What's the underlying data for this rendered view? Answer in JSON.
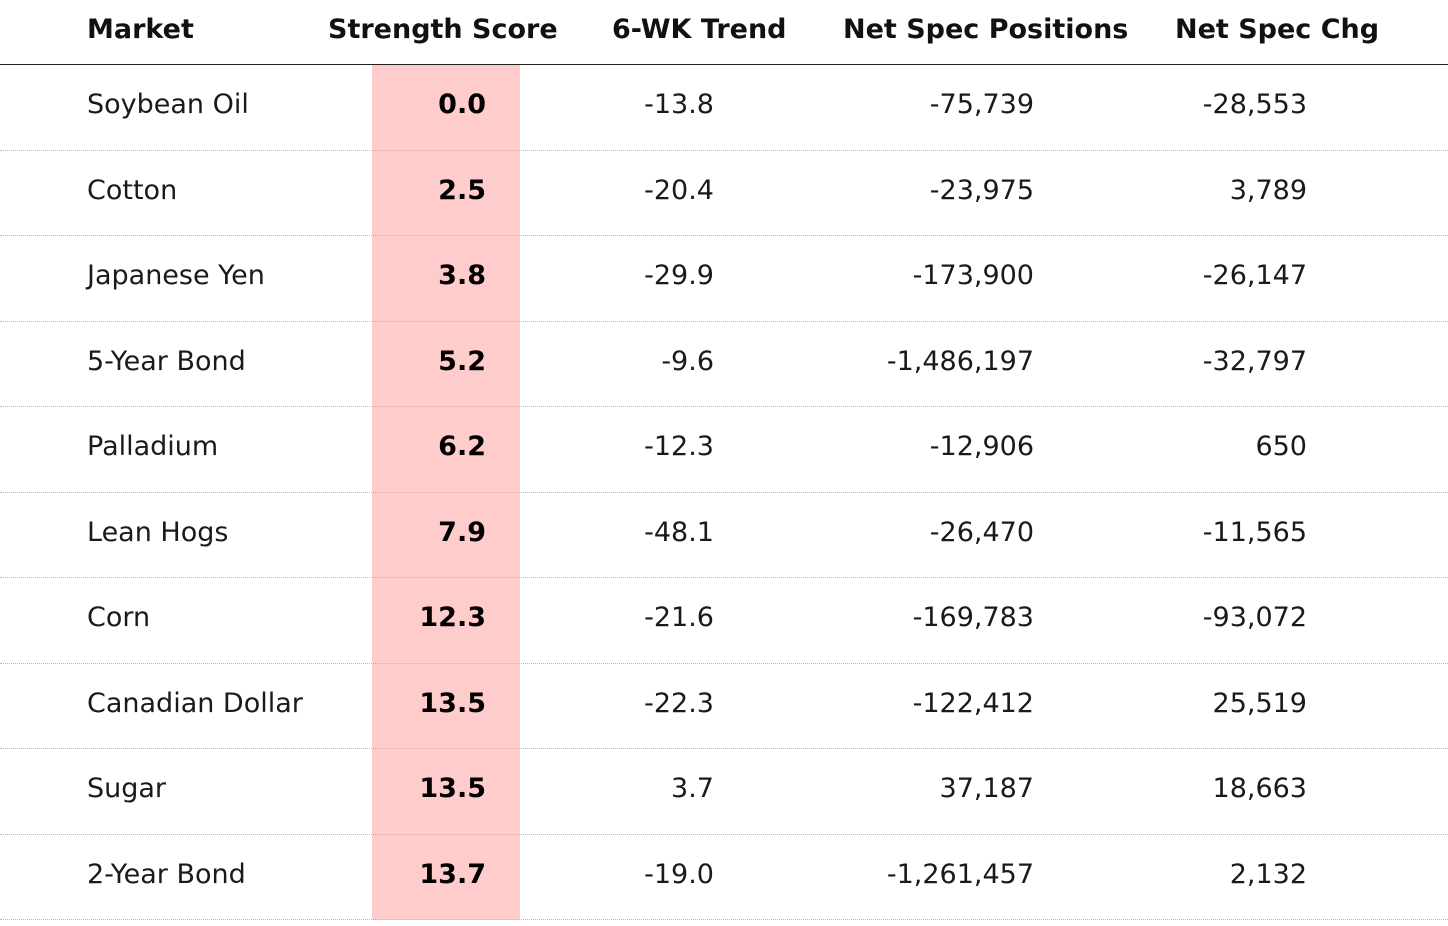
{
  "columns": {
    "market": "Market",
    "strength_score": "Strength Score",
    "trend": "6-WK Trend",
    "net_spec_positions": "Net Spec Positions",
    "net_spec_chg": "Net Spec Chg"
  },
  "rows": [
    {
      "market": "Soybean Oil",
      "strength_score": "0.0",
      "trend": "-13.8",
      "net_spec_positions": "-75,739",
      "net_spec_chg": "-28,553"
    },
    {
      "market": "Cotton",
      "strength_score": "2.5",
      "trend": "-20.4",
      "net_spec_positions": "-23,975",
      "net_spec_chg": "3,789"
    },
    {
      "market": "Japanese Yen",
      "strength_score": "3.8",
      "trend": "-29.9",
      "net_spec_positions": "-173,900",
      "net_spec_chg": "-26,147"
    },
    {
      "market": "5-Year Bond",
      "strength_score": "5.2",
      "trend": "-9.6",
      "net_spec_positions": "-1,486,197",
      "net_spec_chg": "-32,797"
    },
    {
      "market": "Palladium",
      "strength_score": "6.2",
      "trend": "-12.3",
      "net_spec_positions": "-12,906",
      "net_spec_chg": "650"
    },
    {
      "market": "Lean Hogs",
      "strength_score": "7.9",
      "trend": "-48.1",
      "net_spec_positions": "-26,470",
      "net_spec_chg": "-11,565"
    },
    {
      "market": "Corn",
      "strength_score": "12.3",
      "trend": "-21.6",
      "net_spec_positions": "-169,783",
      "net_spec_chg": "-93,072"
    },
    {
      "market": "Canadian Dollar",
      "strength_score": "13.5",
      "trend": "-22.3",
      "net_spec_positions": "-122,412",
      "net_spec_chg": "25,519"
    },
    {
      "market": "Sugar",
      "strength_score": "13.5",
      "trend": "3.7",
      "net_spec_positions": "37,187",
      "net_spec_chg": "18,663"
    },
    {
      "market": "2-Year Bond",
      "strength_score": "13.7",
      "trend": "-19.0",
      "net_spec_positions": "-1,261,457",
      "net_spec_chg": "2,132"
    }
  ],
  "colors": {
    "score_highlight": "#ffcccc",
    "header_rule": "#222222",
    "row_divider": "#b8b8b8"
  }
}
